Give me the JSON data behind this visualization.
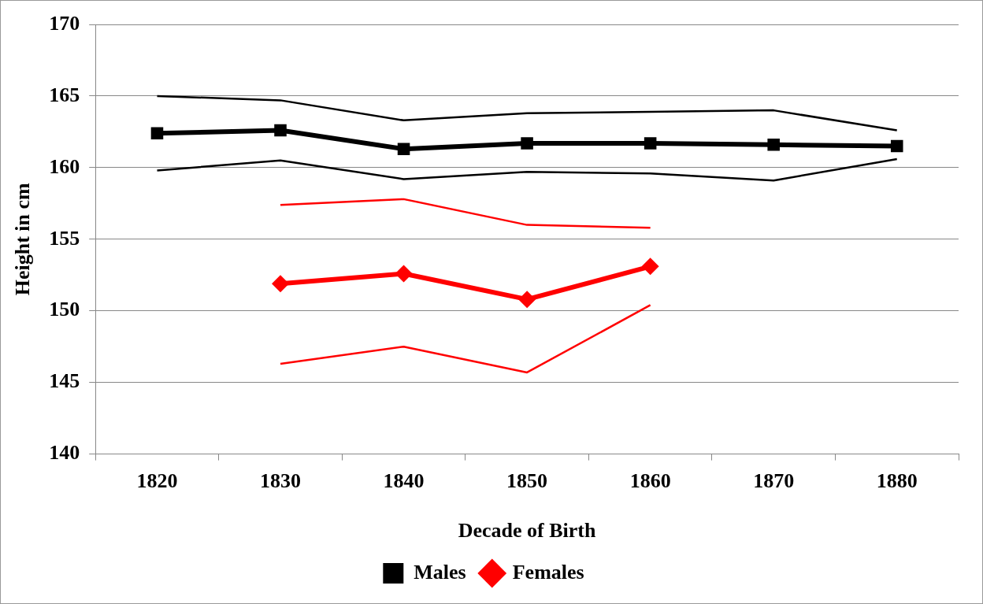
{
  "chart_data": {
    "type": "line",
    "xlabel": "Decade of Birth",
    "ylabel": "Height in cm",
    "categories": [
      "1820",
      "1830",
      "1840",
      "1850",
      "1860",
      "1870",
      "1880"
    ],
    "series": [
      {
        "name": "Males",
        "color": "#000000",
        "marker": "square",
        "values": [
          162.4,
          162.6,
          161.3,
          161.7,
          161.7,
          161.6,
          161.5
        ]
      },
      {
        "color": "#000000",
        "marker": "none",
        "values": [
          165.0,
          164.7,
          163.3,
          163.8,
          163.9,
          164.0,
          162.6
        ]
      },
      {
        "color": "#000000",
        "marker": "none",
        "values": [
          159.8,
          160.5,
          159.2,
          159.7,
          159.6,
          159.1,
          160.6
        ]
      },
      {
        "name": "Females",
        "color": "#ff0000",
        "marker": "diamond",
        "values": [
          null,
          151.9,
          152.6,
          150.8,
          153.1,
          null,
          null
        ]
      },
      {
        "color": "#ff0000",
        "marker": "none",
        "values": [
          null,
          157.4,
          157.8,
          156.0,
          155.8,
          null,
          null
        ]
      },
      {
        "color": "#ff0000",
        "marker": "none",
        "values": [
          null,
          146.3,
          147.5,
          145.7,
          150.4,
          null,
          null
        ]
      }
    ],
    "ylim": [
      140,
      170
    ],
    "yticks": [
      140,
      145,
      150,
      155,
      160,
      165,
      170
    ],
    "grid": "y",
    "legend": "bottom"
  }
}
